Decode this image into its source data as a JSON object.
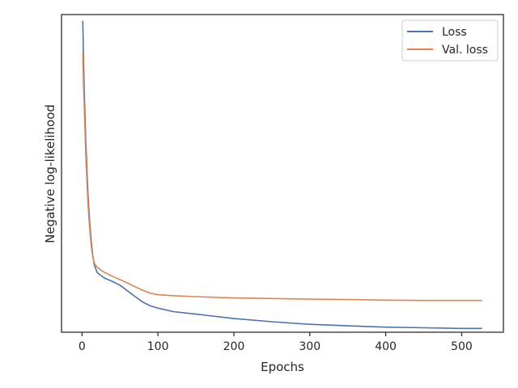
{
  "chart_data": {
    "type": "line",
    "title": "",
    "xlabel": "Epochs",
    "ylabel": "Negative log-likelihood",
    "xlim": [
      -27,
      555
    ],
    "ylim": [
      0,
      1
    ],
    "x_ticks": [
      0,
      100,
      200,
      300,
      400,
      500
    ],
    "x_tick_labels": [
      "0",
      "100",
      "200",
      "300",
      "400",
      "500"
    ],
    "y_ticks_shown": false,
    "grid": false,
    "legend": {
      "position": "top-right",
      "entries": [
        "Loss",
        "Val. loss"
      ]
    },
    "series": [
      {
        "name": "Loss",
        "color": "#4c72b0",
        "x": [
          1,
          2,
          3,
          4,
          5,
          6,
          7,
          8,
          10,
          12,
          14,
          16,
          18,
          20,
          25,
          30,
          40,
          50,
          60,
          70,
          80,
          90,
          100,
          120,
          150,
          200,
          250,
          300,
          350,
          400,
          450,
          500,
          527
        ],
        "y": [
          0.98,
          0.86,
          0.76,
          0.68,
          0.6,
          0.54,
          0.48,
          0.43,
          0.35,
          0.29,
          0.245,
          0.215,
          0.2,
          0.188,
          0.178,
          0.17,
          0.16,
          0.148,
          0.13,
          0.112,
          0.095,
          0.083,
          0.076,
          0.065,
          0.057,
          0.043,
          0.033,
          0.025,
          0.02,
          0.016,
          0.014,
          0.012,
          0.012
        ]
      },
      {
        "name": "Val. loss",
        "color": "#dd8452",
        "x": [
          1,
          2,
          3,
          4,
          5,
          6,
          7,
          8,
          10,
          12,
          14,
          16,
          18,
          20,
          25,
          30,
          40,
          50,
          60,
          70,
          80,
          90,
          100,
          120,
          150,
          200,
          250,
          300,
          350,
          400,
          450,
          500,
          527
        ],
        "y": [
          0.88,
          0.78,
          0.71,
          0.63,
          0.56,
          0.5,
          0.45,
          0.4,
          0.33,
          0.275,
          0.24,
          0.22,
          0.21,
          0.205,
          0.195,
          0.188,
          0.176,
          0.166,
          0.155,
          0.143,
          0.132,
          0.123,
          0.118,
          0.115,
          0.112,
          0.108,
          0.106,
          0.104,
          0.103,
          0.101,
          0.1,
          0.1,
          0.1
        ]
      }
    ]
  }
}
